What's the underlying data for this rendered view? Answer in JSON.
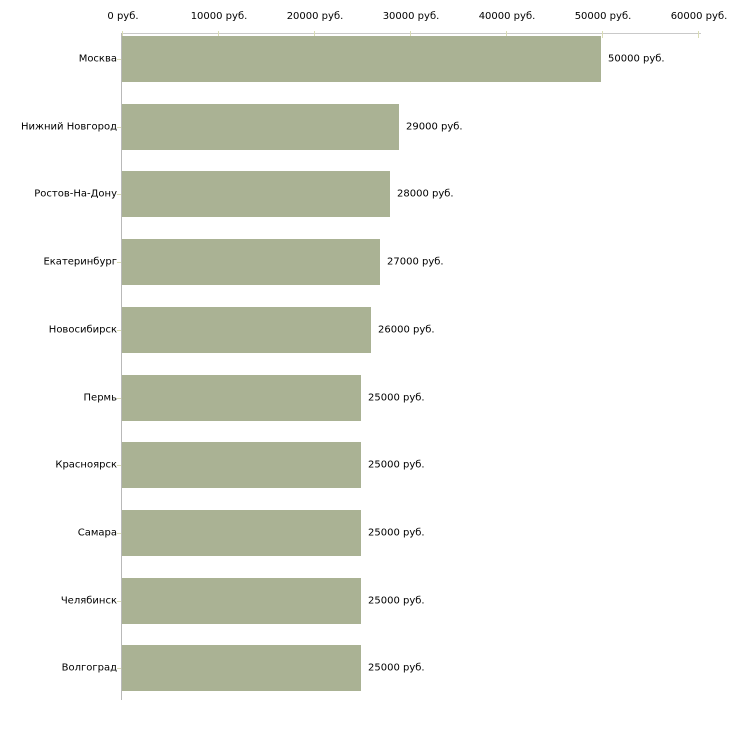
{
  "chart_data": {
    "type": "bar",
    "orientation": "horizontal",
    "title": "",
    "xlabel": "",
    "ylabel": "",
    "categories": [
      "Москва",
      "Нижний Новгород",
      "Ростов-На-Дону",
      "Екатеринбург",
      "Новосибирск",
      "Пермь",
      "Красноярск",
      "Самара",
      "Челябинск",
      "Волгоград"
    ],
    "values": [
      50000,
      29000,
      28000,
      27000,
      26000,
      25000,
      25000,
      25000,
      25000,
      25000
    ],
    "value_labels": [
      "50000 руб.",
      "29000 руб.",
      "28000 руб.",
      "27000 руб.",
      "26000 руб.",
      "25000 руб.",
      "25000 руб.",
      "25000 руб.",
      "25000 руб.",
      "25000 руб."
    ],
    "xlim": [
      0,
      60000
    ],
    "x_ticks": [
      0,
      10000,
      20000,
      30000,
      40000,
      50000,
      60000
    ],
    "x_tick_labels": [
      "0 руб.",
      "10000 руб.",
      "20000 руб.",
      "30000 руб.",
      "40000 руб.",
      "50000 руб.",
      "60000 руб."
    ],
    "unit": "руб.",
    "grid": false,
    "legend": false,
    "tick_label_position": "top",
    "value_label_position": "right-of-bar",
    "colors": {
      "bar": "#aab294",
      "x_axis_line": "#c9c9c9",
      "y_axis_line": "#b9b9b9",
      "tick": "#d9dcb4",
      "text": "#000000",
      "background": "#ffffff"
    }
  }
}
